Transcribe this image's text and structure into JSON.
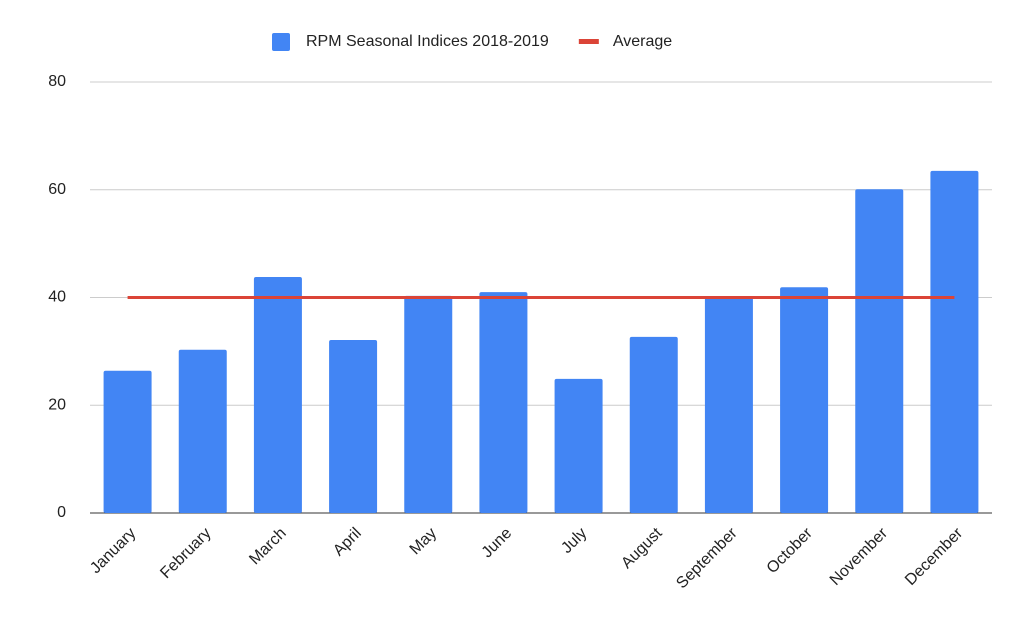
{
  "chart_data": {
    "type": "bar",
    "categories": [
      "January",
      "February",
      "March",
      "April",
      "May",
      "June",
      "July",
      "August",
      "September",
      "October",
      "November",
      "December"
    ],
    "series": [
      {
        "name": "RPM Seasonal Indices 2018-2019",
        "type": "bar",
        "color": "#4285f4",
        "values": [
          26.4,
          30.3,
          43.8,
          32.1,
          40.3,
          41.0,
          24.9,
          32.7,
          40.1,
          41.9,
          60.1,
          63.5
        ]
      },
      {
        "name": "Average",
        "type": "line",
        "color": "#db4437",
        "values": [
          40,
          40,
          40,
          40,
          40,
          40,
          40,
          40,
          40,
          40,
          40,
          40
        ]
      }
    ],
    "ylim": [
      0,
      80
    ],
    "yticks": [
      0,
      20,
      40,
      60,
      80
    ],
    "grid": true,
    "legend": "top"
  }
}
